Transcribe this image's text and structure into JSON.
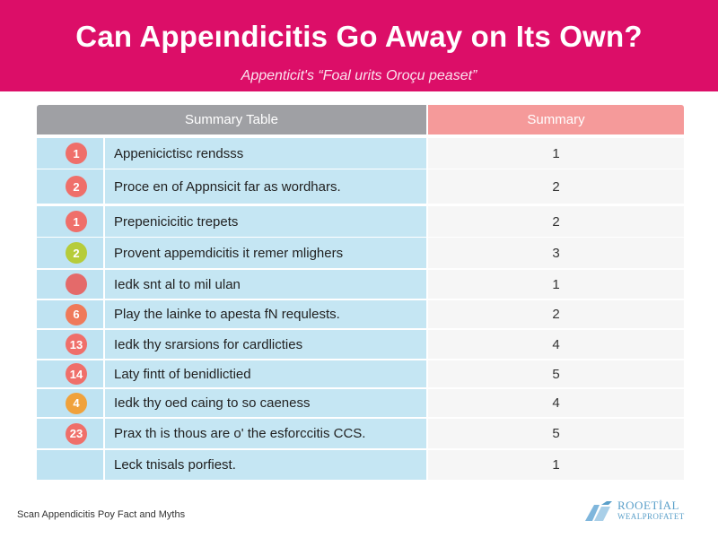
{
  "header": {
    "title": "Can Appeındicitis Go Away on Its Own?",
    "subtitle": "Appenticit's “Foal urits Oroçu peaset”"
  },
  "table": {
    "col_left_header": "Summary Table",
    "col_right_header": "Summary",
    "rows": [
      {
        "badge": "1",
        "badge_color": "#ef6f6a",
        "label": "Appenicictisc rendsss",
        "value": "1"
      },
      {
        "badge": "2",
        "badge_color": "#ef6f6a",
        "label": "Proce en of Appnsicit far as wordhars.",
        "value": "2"
      },
      {
        "badge": "1",
        "badge_color": "#ef6f6a",
        "label": "Prepenicicitic trepets",
        "value": "2"
      },
      {
        "badge": "2",
        "badge_color": "#b6cc3a",
        "label": "Provent appemdicitis it remer mlighers",
        "value": "3"
      },
      {
        "badge": "",
        "badge_color": "#e46a6a",
        "label": "Iedk snt al to mil ulan",
        "value": "1"
      },
      {
        "badge": "6",
        "badge_color": "#ef7a5a",
        "label": "Play the lainke to apesta fN requlests.",
        "value": "2"
      },
      {
        "badge": "13",
        "badge_color": "#ef6f6a",
        "label": "Iedk thy srarsions for cardlicties",
        "value": "4"
      },
      {
        "badge": "14",
        "badge_color": "#ef6f6a",
        "label": "Laty fintt of benidlictied",
        "value": "5"
      },
      {
        "badge": "4",
        "badge_color": "#f0a23c",
        "label": "Iedk thy oed caing to so caeness",
        "value": "4"
      },
      {
        "badge": "23",
        "badge_color": "#ef6f6a",
        "label": "Prax th is thous are o' the esforccitis CCS.",
        "value": "5"
      },
      {
        "badge": "",
        "badge_color": "",
        "label": "Leck tnisals porfiest.",
        "value": "1"
      }
    ]
  },
  "footer": {
    "caption": "Scan Appendicitis Poy Fact and Myths",
    "logo_line1": "ROOETİAL",
    "logo_line2": "WEALPROFATET",
    "logo_color": "#5a9fc9"
  }
}
